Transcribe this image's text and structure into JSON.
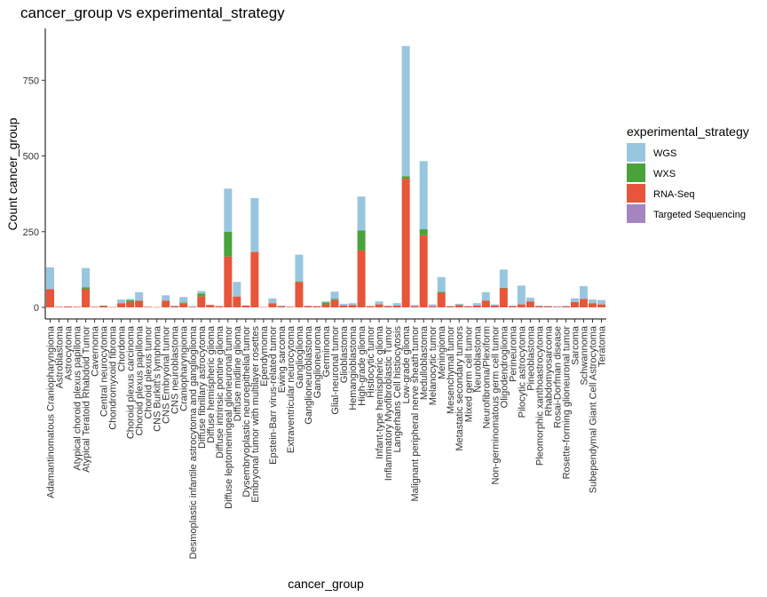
{
  "chart_data": {
    "type": "bar",
    "stacked": true,
    "title": "cancer_group vs experimental_strategy",
    "xlabel": "cancer_group",
    "ylabel": "Count cancer_group",
    "ylim": [
      0,
      880
    ],
    "yticks": [
      0,
      250,
      500,
      750
    ],
    "categories": [
      "Adamantinomatous Craniopharyngioma",
      "Astroblastoma",
      "Astrocytoma",
      "Atypical choroid plexus papilloma",
      "Atypical Teratoid Rhabdoid Tumor",
      "Cavernoma",
      "Central neurocytoma",
      "Chondromyxoid fibroma",
      "Chordoma",
      "Choroid plexus carcinoma",
      "Choroid plexus papilloma",
      "Choroid plexus tumor",
      "CNS Burkitt's lymphoma",
      "CNS Embryonal tumor",
      "CNS neuroblastoma",
      "Craniopharyngioma",
      "Desmoplastic infantile astrocytoma and ganglioglioma",
      "Diffuse fibrillary astrocytoma",
      "Diffuse hemispheric glioma",
      "Diffuse intrinsic pontine glioma",
      "Diffuse leptomeningeal glioneuronal tumor",
      "Diffuse midline glioma",
      "Dysembryoplastic neuroepithelial tumor",
      "Embryonal tumor with multilayer rosettes",
      "Ependymoma",
      "Epstein-Barr virus-related tumor",
      "Ewing sarcoma",
      "Extraventricular neurocytoma",
      "Ganglioglioma",
      "Ganglioneuroblastoma",
      "Ganglioneuroma",
      "Germinoma",
      "Glial-neuronal tumor",
      "Glioblastoma",
      "Hemangioblastoma",
      "High-grade glioma",
      "Histiocytic tumor",
      "Infant-type hemispheric glioma",
      "Inflammatory Myofibroblastic Tumor",
      "Langerhans Cell histiocytosis",
      "Low-grade glioma",
      "Malignant peripheral nerve sheath tumor",
      "Medulloblastoma",
      "Melanocytic tumor",
      "Meningioma",
      "Mesenchymal tumor",
      "Metastatic secondary tumors",
      "Mixed germ cell tumor",
      "Neuroblastoma",
      "Neurofibroma/Plexiform",
      "Non-germinomatous germ cell tumor",
      "Oligodendroglioma",
      "Perineuroma",
      "Pilocytic astrocytoma",
      "Pineoblastoma",
      "Pleomorphic xanthoastrocytoma",
      "Rhabdomyosarcoma",
      "Rosai-Dorfman disease",
      "Rosette-forming glioneuronal tumor",
      "Sarcoma",
      "Schwannoma",
      "Subependymal Giant Cell Astrocytoma",
      "Teratoma"
    ],
    "series": [
      {
        "name": "RNA-Seq",
        "color": "#e8553a",
        "values": [
          60,
          2,
          3,
          2,
          60,
          2,
          4,
          1,
          14,
          18,
          22,
          2,
          1,
          22,
          4,
          14,
          2,
          36,
          8,
          4,
          168,
          36,
          6,
          183,
          1,
          14,
          4,
          2,
          84,
          4,
          3,
          10,
          24,
          6,
          8,
          188,
          4,
          10,
          4,
          6,
          425,
          4,
          238,
          4,
          48,
          3,
          8,
          3,
          6,
          22,
          6,
          63,
          4,
          10,
          20,
          4,
          3,
          2,
          3,
          18,
          28,
          14,
          10
        ]
      },
      {
        "name": "WXS",
        "color": "#4aa33a",
        "values": [
          0,
          0,
          0,
          0,
          6,
          0,
          2,
          0,
          0,
          6,
          0,
          0,
          0,
          0,
          0,
          2,
          0,
          10,
          0,
          0,
          82,
          0,
          0,
          0,
          0,
          0,
          0,
          0,
          2,
          0,
          0,
          6,
          4,
          0,
          0,
          66,
          0,
          0,
          0,
          0,
          8,
          0,
          20,
          0,
          4,
          0,
          0,
          0,
          0,
          0,
          0,
          2,
          0,
          0,
          0,
          0,
          0,
          0,
          0,
          0,
          0,
          0,
          0
        ]
      },
      {
        "name": "WGS",
        "color": "#99c6df",
        "values": [
          72,
          0,
          0,
          0,
          64,
          0,
          0,
          0,
          12,
          4,
          28,
          0,
          0,
          18,
          2,
          18,
          2,
          8,
          0,
          0,
          142,
          48,
          0,
          178,
          0,
          16,
          2,
          0,
          88,
          2,
          2,
          4,
          24,
          6,
          6,
          112,
          0,
          10,
          2,
          8,
          430,
          4,
          225,
          6,
          48,
          2,
          4,
          2,
          8,
          28,
          4,
          60,
          2,
          62,
          12,
          2,
          2,
          2,
          2,
          12,
          42,
          12,
          14
        ]
      },
      {
        "name": "Targeted Sequencing",
        "color": "#a585c0",
        "values": [
          0,
          0,
          0,
          0,
          0,
          0,
          0,
          0,
          0,
          0,
          0,
          0,
          0,
          0,
          0,
          0,
          0,
          0,
          0,
          0,
          0,
          0,
          0,
          0,
          0,
          0,
          0,
          0,
          0,
          0,
          0,
          0,
          0,
          0,
          0,
          0,
          0,
          0,
          0,
          0,
          0,
          0,
          0,
          0,
          0,
          0,
          0,
          0,
          0,
          0,
          0,
          0,
          0,
          0,
          0,
          0,
          0,
          0,
          0,
          0,
          0,
          0,
          0
        ]
      }
    ],
    "legend": {
      "title": "experimental_strategy",
      "entries": [
        "WGS",
        "WXS",
        "RNA-Seq",
        "Targeted Sequencing"
      ],
      "position": "right"
    }
  }
}
